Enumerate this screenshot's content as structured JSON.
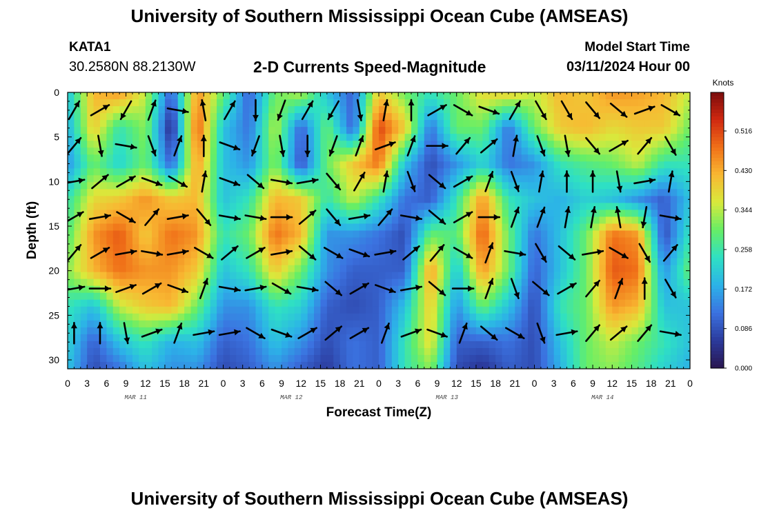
{
  "header": {
    "title": "University of Southern Mississippi Ocean Cube (AMSEAS)",
    "station_id": "KATA1",
    "station_coords": "30.2580N  88.2130W",
    "chart_title": "2-D Currents Speed-Magnitude",
    "model_start_label": "Model Start Time",
    "model_start_value": "03/11/2024 Hour 00"
  },
  "footer": {
    "title": "University of Southern Mississippi Ocean Cube (AMSEAS)"
  },
  "chart_data": {
    "type": "heatmap",
    "title": "2-D Currents Speed-Magnitude",
    "xlabel": "Forecast Time(Z)",
    "ylabel": "Depth (ft)",
    "x_tick_labels": [
      "0",
      "3",
      "6",
      "9",
      "12",
      "15",
      "18",
      "21",
      "0",
      "3",
      "6",
      "9",
      "12",
      "15",
      "18",
      "21",
      "0",
      "3",
      "6",
      "9",
      "12",
      "15",
      "18",
      "21",
      "0",
      "3",
      "6",
      "9",
      "12",
      "15",
      "18",
      "21",
      "0"
    ],
    "day_labels": [
      "MAR 11",
      "MAR 12",
      "MAR 13",
      "MAR 14"
    ],
    "xlim_hours": [
      0,
      96
    ],
    "y_tick_labels": [
      "0",
      "5",
      "10",
      "15",
      "20",
      "25",
      "30"
    ],
    "ylim_ft": [
      0,
      31
    ],
    "y_inverted": true,
    "colorbar": {
      "unit": "Knots",
      "ticks": [
        "0.000",
        "0.086",
        "0.172",
        "0.258",
        "0.344",
        "0.430",
        "0.516"
      ],
      "range": [
        0,
        0.6
      ],
      "colors": [
        "#2a1650",
        "#2b3a9c",
        "#3b72e0",
        "#2cb2e8",
        "#2ee0c4",
        "#66ee66",
        "#d8ea3c",
        "#f8b832",
        "#f07018",
        "#d02810",
        "#7a0c0c"
      ]
    },
    "speed_knots": {
      "times_hours": [
        0,
        4,
        8,
        12,
        16,
        20,
        24,
        28,
        32,
        36,
        40,
        44,
        48,
        52,
        56,
        60,
        64,
        68,
        72,
        76,
        80,
        84,
        88,
        92,
        96
      ],
      "depths_ft": [
        0,
        4,
        8,
        12,
        16,
        20,
        24,
        28,
        31
      ],
      "values": [
        [
          0.2,
          0.42,
          0.45,
          0.35,
          0.1,
          0.45,
          0.3,
          0.1,
          0.3,
          0.35,
          0.2,
          0.1,
          0.4,
          0.3,
          0.25,
          0.3,
          0.38,
          0.4,
          0.35,
          0.42,
          0.4,
          0.45,
          0.44,
          0.42,
          0.35
        ],
        [
          0.18,
          0.4,
          0.25,
          0.32,
          0.03,
          0.5,
          0.2,
          0.12,
          0.35,
          0.1,
          0.3,
          0.1,
          0.52,
          0.4,
          0.12,
          0.3,
          0.3,
          0.12,
          0.3,
          0.4,
          0.42,
          0.38,
          0.4,
          0.4,
          0.3
        ],
        [
          0.15,
          0.3,
          0.22,
          0.3,
          0.1,
          0.45,
          0.2,
          0.15,
          0.32,
          0.08,
          0.3,
          0.4,
          0.48,
          0.2,
          0.08,
          0.15,
          0.22,
          0.12,
          0.15,
          0.25,
          0.28,
          0.3,
          0.35,
          0.25,
          0.25
        ],
        [
          0.25,
          0.38,
          0.4,
          0.45,
          0.4,
          0.42,
          0.2,
          0.25,
          0.42,
          0.4,
          0.25,
          0.35,
          0.25,
          0.12,
          0.1,
          0.25,
          0.45,
          0.25,
          0.2,
          0.18,
          0.22,
          0.2,
          0.15,
          0.1,
          0.2
        ],
        [
          0.28,
          0.45,
          0.5,
          0.4,
          0.48,
          0.45,
          0.25,
          0.3,
          0.48,
          0.42,
          0.15,
          0.15,
          0.12,
          0.08,
          0.3,
          0.28,
          0.5,
          0.3,
          0.12,
          0.2,
          0.3,
          0.48,
          0.45,
          0.08,
          0.25
        ],
        [
          0.32,
          0.42,
          0.48,
          0.45,
          0.45,
          0.4,
          0.2,
          0.25,
          0.4,
          0.3,
          0.15,
          0.1,
          0.1,
          0.1,
          0.45,
          0.2,
          0.45,
          0.3,
          0.1,
          0.2,
          0.3,
          0.5,
          0.48,
          0.15,
          0.3
        ],
        [
          0.25,
          0.2,
          0.35,
          0.4,
          0.42,
          0.3,
          0.15,
          0.15,
          0.25,
          0.22,
          0.1,
          0.08,
          0.1,
          0.2,
          0.4,
          0.15,
          0.3,
          0.2,
          0.08,
          0.25,
          0.3,
          0.45,
          0.42,
          0.2,
          0.2
        ],
        [
          0.22,
          0.1,
          0.2,
          0.25,
          0.18,
          0.2,
          0.1,
          0.12,
          0.2,
          0.15,
          0.08,
          0.12,
          0.1,
          0.25,
          0.38,
          0.1,
          0.1,
          0.12,
          0.08,
          0.2,
          0.3,
          0.35,
          0.3,
          0.25,
          0.2
        ],
        [
          0.2,
          0.08,
          0.12,
          0.2,
          0.15,
          0.15,
          0.08,
          0.1,
          0.15,
          0.1,
          0.06,
          0.12,
          0.1,
          0.25,
          0.32,
          0.08,
          0.05,
          0.1,
          0.08,
          0.18,
          0.3,
          0.32,
          0.28,
          0.22,
          0.18
        ]
      ]
    },
    "vectors": {
      "times_hours": [
        1,
        5,
        9,
        13,
        17,
        21,
        25,
        29,
        33,
        37,
        41,
        45,
        49,
        53,
        57,
        61,
        65,
        69,
        73,
        77,
        81,
        85,
        89,
        93
      ],
      "depths_ft": [
        2,
        6,
        10,
        14,
        18,
        22,
        27
      ],
      "direction_deg": [
        [
          30,
          60,
          210,
          20,
          100,
          350,
          30,
          180,
          200,
          30,
          210,
          170,
          10,
          0,
          60,
          120,
          110,
          30,
          150,
          150,
          140,
          130,
          70,
          120
        ],
        [
          40,
          170,
          100,
          160,
          20,
          0,
          110,
          200,
          170,
          180,
          200,
          20,
          70,
          20,
          90,
          40,
          50,
          10,
          160,
          170,
          140,
          60,
          40,
          150
        ],
        [
          80,
          50,
          60,
          110,
          120,
          10,
          110,
          130,
          100,
          80,
          140,
          30,
          10,
          160,
          130,
          60,
          20,
          160,
          10,
          0,
          0,
          170,
          80,
          10
        ],
        [
          60,
          80,
          120,
          40,
          80,
          140,
          100,
          100,
          90,
          50,
          140,
          80,
          40,
          100,
          130,
          60,
          90,
          20,
          20,
          10,
          10,
          350,
          190,
          100
        ],
        [
          40,
          60,
          80,
          100,
          80,
          120,
          50,
          60,
          80,
          130,
          120,
          110,
          80,
          50,
          40,
          120,
          20,
          100,
          150,
          130,
          80,
          120,
          150,
          40
        ],
        [
          80,
          90,
          70,
          60,
          110,
          20,
          100,
          80,
          120,
          100,
          130,
          60,
          110,
          80,
          130,
          90,
          20,
          160,
          130,
          60,
          40,
          20,
          0,
          150
        ],
        [
          0,
          0,
          170,
          70,
          20,
          80,
          80,
          120,
          110,
          60,
          50,
          60,
          20,
          70,
          110,
          20,
          130,
          120,
          160,
          80,
          40,
          50,
          40,
          100
        ]
      ]
    }
  }
}
